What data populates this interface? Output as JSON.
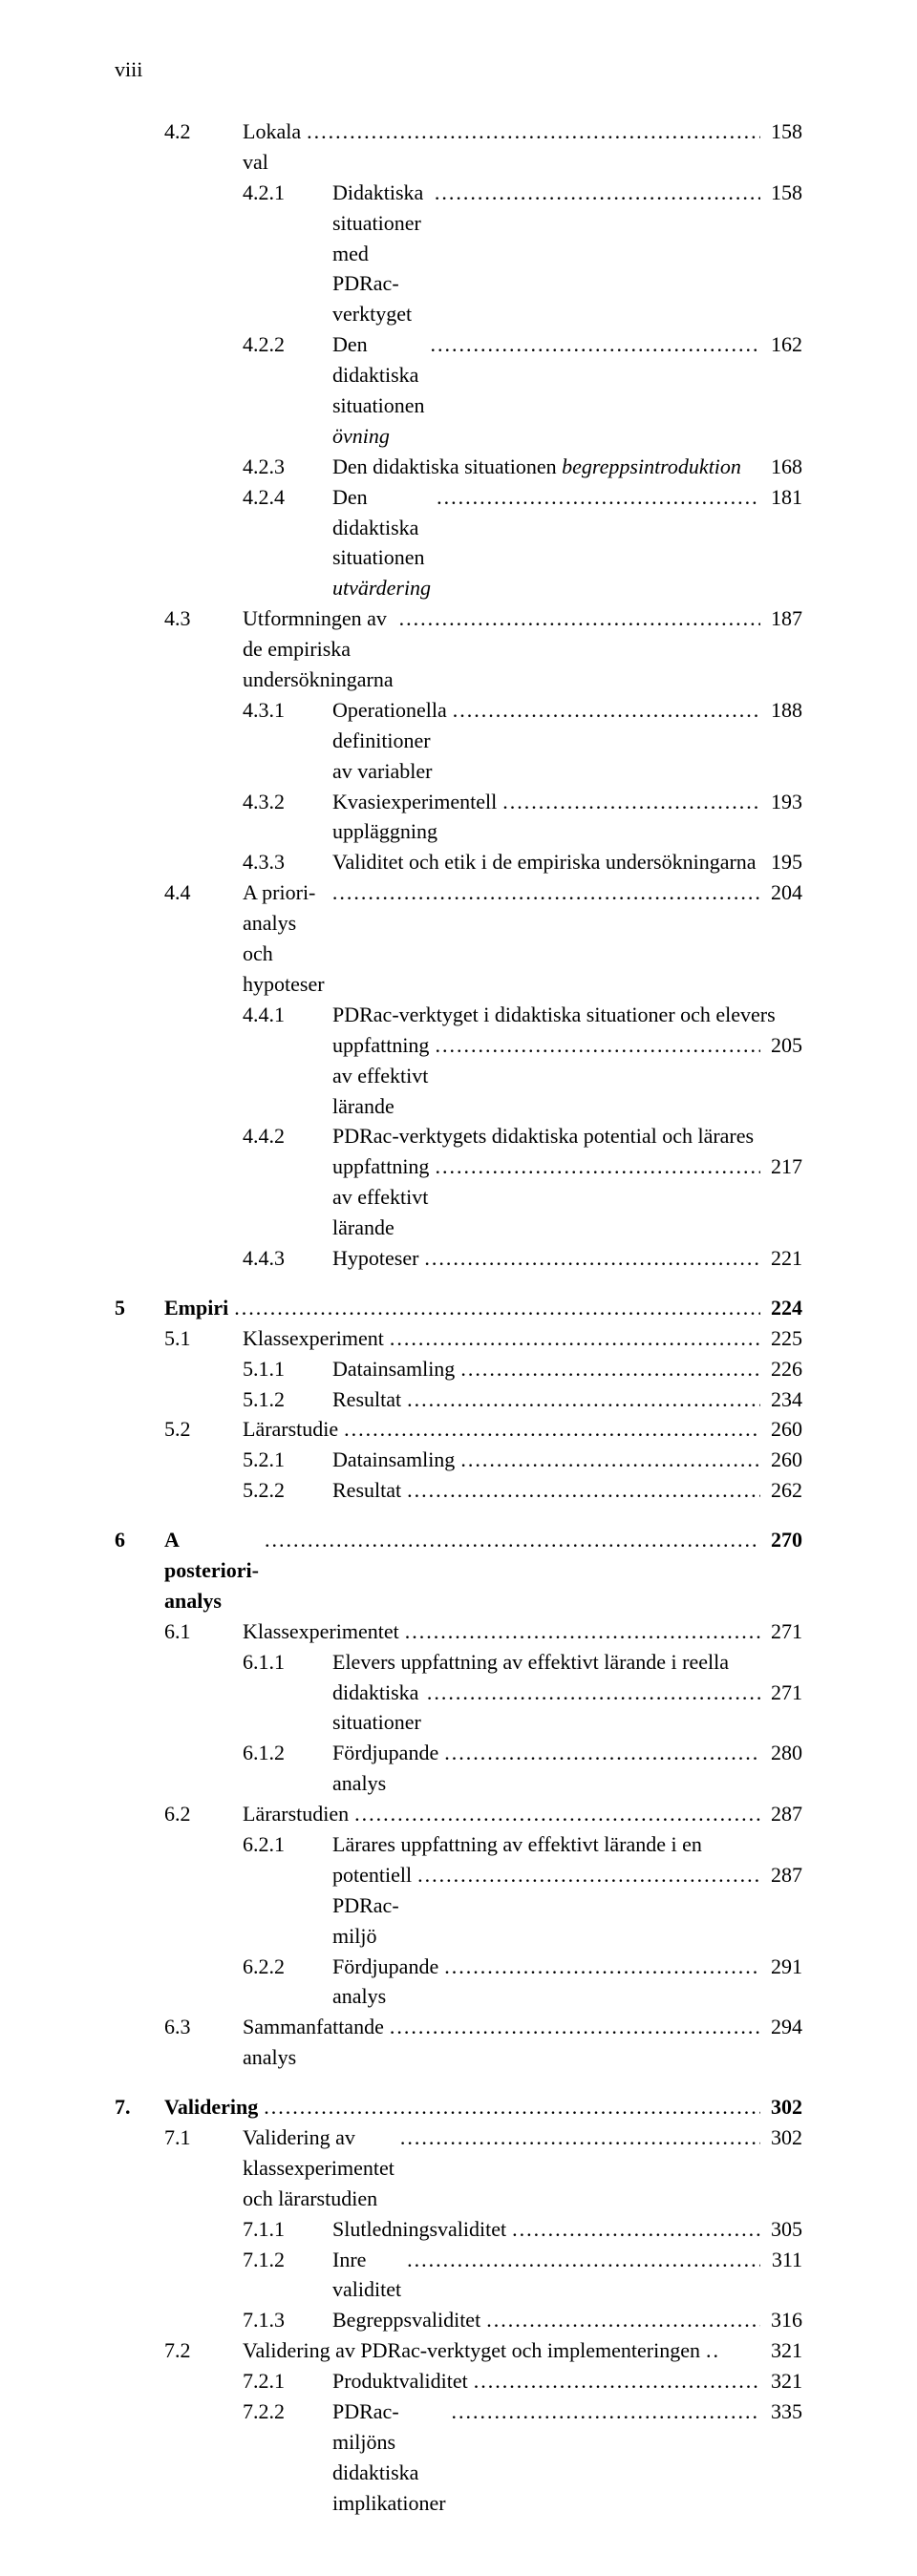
{
  "page_roman": "viii",
  "leader": "...............................................................................................................................................................................",
  "entries": [
    {
      "lvl": 2,
      "num": "4.2",
      "title": "Lokala val",
      "page": "158"
    },
    {
      "lvl": 3,
      "num": "4.2.1",
      "title": "Didaktiska situationer med PDRac-verktyget",
      "page": "158"
    },
    {
      "lvl": 3,
      "num": "4.2.2",
      "title": "Den didaktiska situationen övning",
      "page": "162",
      "italic_tail": "övning"
    },
    {
      "lvl": 3,
      "num": "4.2.3",
      "title": "Den didaktiska situationen begreppsintroduktion",
      "page": "168",
      "italic_tail": "begreppsintroduktion",
      "no_dots": true
    },
    {
      "lvl": 3,
      "num": "4.2.4",
      "title": "Den didaktiska situationen utvärdering",
      "page": "181",
      "italic_tail": "utvärdering"
    },
    {
      "lvl": 2,
      "num": "4.3",
      "title": "Utformningen av de empiriska undersökningarna",
      "page": "187"
    },
    {
      "lvl": 3,
      "num": "4.3.1",
      "title": "Operationella definitioner av variabler",
      "page": "188"
    },
    {
      "lvl": 3,
      "num": "4.3.2",
      "title": "Kvasiexperimentell uppläggning",
      "page": "193"
    },
    {
      "lvl": 3,
      "num": "4.3.3",
      "title": "Validitet och etik i de empiriska undersökningarna",
      "page": "195",
      "no_dots": true
    },
    {
      "lvl": 2,
      "num": "4.4",
      "title": "A priori-analys och hypoteser",
      "page": "204"
    },
    {
      "lvl": 3,
      "num": "4.4.1",
      "title_lines": [
        "PDRac-verktyget i didaktiska situationer och elevers",
        "uppfattning av effektivt lärande"
      ],
      "page": "205"
    },
    {
      "lvl": 3,
      "num": "4.4.2",
      "title_lines": [
        "PDRac-verktygets didaktiska potential och lärares",
        "uppfattning av effektivt lärande"
      ],
      "page": "217"
    },
    {
      "lvl": 3,
      "num": "4.4.3",
      "title": "Hypoteser",
      "page": "221"
    },
    {
      "gap": true
    },
    {
      "lvl": 1,
      "num": "5",
      "title": "Empiri",
      "page": "224",
      "bold": true
    },
    {
      "lvl": 2,
      "num": "5.1",
      "title": "Klassexperiment",
      "page": "225"
    },
    {
      "lvl": 3,
      "num": "5.1.1",
      "title": "Datainsamling",
      "page": "226"
    },
    {
      "lvl": 3,
      "num": "5.1.2",
      "title": "Resultat",
      "page": "234"
    },
    {
      "lvl": 2,
      "num": "5.2",
      "title": "Lärarstudie",
      "page": "260"
    },
    {
      "lvl": 3,
      "num": "5.2.1",
      "title": "Datainsamling",
      "page": "260"
    },
    {
      "lvl": 3,
      "num": "5.2.2",
      "title": "Resultat",
      "page": "262"
    },
    {
      "gap": true
    },
    {
      "lvl": 1,
      "num": "6",
      "title": "A posteriori-analys",
      "page": "270",
      "bold": true
    },
    {
      "lvl": 2,
      "num": "6.1",
      "title": "Klassexperimentet",
      "page": "271"
    },
    {
      "lvl": 3,
      "num": "6.1.1",
      "title_lines": [
        "Elevers uppfattning av effektivt lärande i reella",
        "didaktiska situationer"
      ],
      "page": "271"
    },
    {
      "lvl": 3,
      "num": "6.1.2",
      "title": "Fördjupande analys",
      "page": "280"
    },
    {
      "lvl": 2,
      "num": "6.2",
      "title": "Lärarstudien",
      "page": "287"
    },
    {
      "lvl": 3,
      "num": "6.2.1",
      "title_lines": [
        "Lärares uppfattning av effektivt lärande i en",
        "potentiell PDRac-miljö"
      ],
      "page": "287"
    },
    {
      "lvl": 3,
      "num": "6.2.2",
      "title": "Fördjupande analys",
      "page": "291"
    },
    {
      "lvl": 2,
      "num": "6.3",
      "title": "Sammanfattande analys",
      "page": "294"
    },
    {
      "gap": true
    },
    {
      "lvl": 1,
      "num": "7.",
      "title": "Validering",
      "page": "302",
      "bold": true
    },
    {
      "lvl": 2,
      "num": "7.1",
      "title": "Validering av klassexperimentet och lärarstudien",
      "page": "302"
    },
    {
      "lvl": 3,
      "num": "7.1.1",
      "title": "Slutledningsvaliditet",
      "page": "305"
    },
    {
      "lvl": 3,
      "num": "7.1.2",
      "title": "Inre validitet",
      "page": "311"
    },
    {
      "lvl": 3,
      "num": "7.1.3",
      "title": "Begreppsvaliditet",
      "page": "316"
    },
    {
      "lvl": 2,
      "num": "7.2",
      "title": "Validering av PDRac-verktyget och implementeringen",
      "page": "321",
      "short_leader": ".."
    },
    {
      "lvl": 3,
      "num": "7.2.1",
      "title": "Produktvaliditet",
      "page": "321"
    },
    {
      "lvl": 3,
      "num": "7.2.2",
      "title": "PDRac-miljöns didaktiska implikationer",
      "page": "335"
    }
  ]
}
